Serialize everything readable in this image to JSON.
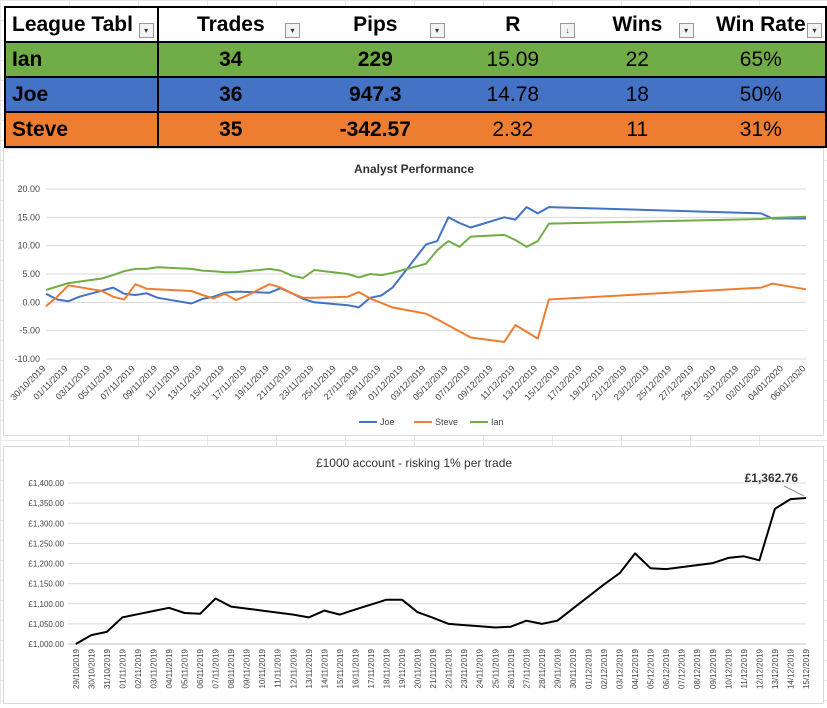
{
  "table": {
    "headers": [
      "League Tabl",
      "Trades",
      "Pips",
      "R",
      "Wins",
      "Win Rate"
    ],
    "rows": [
      [
        "Ian",
        "34",
        "229",
        "15.09",
        "22",
        "65%"
      ],
      [
        "Joe",
        "36",
        "947.3",
        "14.78",
        "18",
        "50%"
      ],
      [
        "Steve",
        "35",
        "-342.57",
        "2.32",
        "11",
        "31%"
      ]
    ],
    "row_colors": [
      "#70ad47",
      "#4472c4",
      "#ed7d31"
    ]
  },
  "chart_data": [
    {
      "type": "line",
      "title": "Analyst Performance",
      "ylim": [
        -10,
        20
      ],
      "yticks": [
        "-10.00",
        "-5.00",
        "0.00",
        "5.00",
        "10.00",
        "15.00",
        "20.00"
      ],
      "xlim": [
        "2019-10-30",
        "2020-01-06"
      ],
      "xticks": [
        "30/10/2019",
        "01/11/2019",
        "03/11/2019",
        "05/11/2019",
        "07/11/2019",
        "09/11/2019",
        "11/11/2019",
        "13/11/2019",
        "15/11/2019",
        "17/11/2019",
        "19/11/2019",
        "21/11/2019",
        "23/11/2019",
        "25/11/2019",
        "27/11/2019",
        "29/11/2019",
        "01/12/2019",
        "03/12/2019",
        "05/12/2019",
        "07/12/2019",
        "09/12/2019",
        "11/12/2019",
        "13/12/2019",
        "15/12/2019",
        "17/12/2019",
        "19/12/2019",
        "21/12/2019",
        "23/12/2019",
        "25/12/2019",
        "27/12/2019",
        "29/12/2019",
        "31/12/2019",
        "02/01/2020",
        "04/01/2020",
        "06/01/2020"
      ],
      "legend_position": "bottom",
      "series": [
        {
          "name": "Joe",
          "color": "#4472c4",
          "points": [
            [
              "2019-10-30",
              1.5
            ],
            [
              "2019-10-31",
              0.5
            ],
            [
              "2019-11-01",
              0.2
            ],
            [
              "2019-11-02",
              1.0
            ],
            [
              "2019-11-05",
              2.6
            ],
            [
              "2019-11-06",
              1.5
            ],
            [
              "2019-11-07",
              1.3
            ],
            [
              "2019-11-08",
              1.6
            ],
            [
              "2019-11-09",
              0.8
            ],
            [
              "2019-11-12",
              -0.2
            ],
            [
              "2019-11-13",
              0.6
            ],
            [
              "2019-11-14",
              1.0
            ],
            [
              "2019-11-15",
              1.7
            ],
            [
              "2019-11-16",
              1.9
            ],
            [
              "2019-11-19",
              1.7
            ],
            [
              "2019-11-20",
              2.5
            ],
            [
              "2019-11-21",
              1.6
            ],
            [
              "2019-11-22",
              0.6
            ],
            [
              "2019-11-23",
              0.0
            ],
            [
              "2019-11-26",
              -0.5
            ],
            [
              "2019-11-27",
              -0.9
            ],
            [
              "2019-11-28",
              0.8
            ],
            [
              "2019-11-29",
              1.2
            ],
            [
              "2019-11-30",
              2.6
            ],
            [
              "2019-12-03",
              10.2
            ],
            [
              "2019-12-04",
              10.8
            ],
            [
              "2019-12-05",
              15.0
            ],
            [
              "2019-12-06",
              14.0
            ],
            [
              "2019-12-07",
              13.2
            ],
            [
              "2019-12-10",
              15.0
            ],
            [
              "2019-12-11",
              14.6
            ],
            [
              "2019-12-12",
              16.8
            ],
            [
              "2019-12-13",
              15.7
            ],
            [
              "2019-12-14",
              16.8
            ],
            [
              "2020-01-02",
              15.7
            ],
            [
              "2020-01-03",
              14.8
            ],
            [
              "2020-01-06",
              14.8
            ]
          ]
        },
        {
          "name": "Steve",
          "color": "#ed7d31",
          "points": [
            [
              "2019-10-30",
              -0.7
            ],
            [
              "2019-10-31",
              1.0
            ],
            [
              "2019-11-01",
              3.0
            ],
            [
              "2019-11-04",
              2.0
            ],
            [
              "2019-11-05",
              1.0
            ],
            [
              "2019-11-06",
              0.5
            ],
            [
              "2019-11-07",
              3.2
            ],
            [
              "2019-11-08",
              2.4
            ],
            [
              "2019-11-12",
              2.0
            ],
            [
              "2019-11-13",
              1.3
            ],
            [
              "2019-11-14",
              0.7
            ],
            [
              "2019-11-15",
              1.5
            ],
            [
              "2019-11-16",
              0.4
            ],
            [
              "2019-11-17",
              1.2
            ],
            [
              "2019-11-19",
              3.2
            ],
            [
              "2019-11-20",
              2.6
            ],
            [
              "2019-11-21",
              1.6
            ],
            [
              "2019-11-22",
              0.8
            ],
            [
              "2019-11-23",
              0.8
            ],
            [
              "2019-11-26",
              1.0
            ],
            [
              "2019-11-27",
              1.8
            ],
            [
              "2019-11-28",
              0.7
            ],
            [
              "2019-11-30",
              -0.9
            ],
            [
              "2019-12-03",
              -2.0
            ],
            [
              "2019-12-04",
              -3.0
            ],
            [
              "2019-12-07",
              -6.2
            ],
            [
              "2019-12-10",
              -7.0
            ],
            [
              "2019-12-11",
              -4.0
            ],
            [
              "2019-12-13",
              -6.4
            ],
            [
              "2019-12-14",
              0.5
            ],
            [
              "2020-01-02",
              2.6
            ],
            [
              "2020-01-03",
              3.3
            ],
            [
              "2020-01-06",
              2.3
            ]
          ]
        },
        {
          "name": "Ian",
          "color": "#70ad47",
          "points": [
            [
              "2019-10-30",
              2.2
            ],
            [
              "2019-10-31",
              2.8
            ],
            [
              "2019-11-01",
              3.4
            ],
            [
              "2019-11-04",
              4.2
            ],
            [
              "2019-11-05",
              4.8
            ],
            [
              "2019-11-06",
              5.5
            ],
            [
              "2019-11-07",
              5.9
            ],
            [
              "2019-11-08",
              5.9
            ],
            [
              "2019-11-09",
              6.2
            ],
            [
              "2019-11-12",
              5.9
            ],
            [
              "2019-11-13",
              5.6
            ],
            [
              "2019-11-14",
              5.5
            ],
            [
              "2019-11-15",
              5.3
            ],
            [
              "2019-11-16",
              5.3
            ],
            [
              "2019-11-19",
              5.9
            ],
            [
              "2019-11-20",
              5.6
            ],
            [
              "2019-11-21",
              4.7
            ],
            [
              "2019-11-22",
              4.3
            ],
            [
              "2019-11-23",
              5.7
            ],
            [
              "2019-11-26",
              5.0
            ],
            [
              "2019-11-27",
              4.4
            ],
            [
              "2019-11-28",
              5.0
            ],
            [
              "2019-11-29",
              4.8
            ],
            [
              "2019-11-30",
              5.2
            ],
            [
              "2019-12-03",
              6.8
            ],
            [
              "2019-12-04",
              9.2
            ],
            [
              "2019-12-05",
              10.8
            ],
            [
              "2019-12-06",
              9.8
            ],
            [
              "2019-12-07",
              11.6
            ],
            [
              "2019-12-10",
              11.9
            ],
            [
              "2019-12-11",
              11.0
            ],
            [
              "2019-12-12",
              9.8
            ],
            [
              "2019-12-13",
              10.8
            ],
            [
              "2019-12-14",
              13.9
            ],
            [
              "2020-01-02",
              14.7
            ],
            [
              "2020-01-03",
              14.9
            ],
            [
              "2020-01-06",
              15.1
            ]
          ]
        }
      ]
    },
    {
      "type": "line",
      "title": "£1000 account - risking 1% per trade",
      "ylim": [
        1000,
        1400
      ],
      "yticks": [
        "£1,000.00",
        "£1,050.00",
        "£1,100.00",
        "£1,150.00",
        "£1,200.00",
        "£1,250.00",
        "£1,300.00",
        "£1,350.00",
        "£1,400.00"
      ],
      "categories": [
        "29/10/2019",
        "30/10/2019",
        "31/10/2019",
        "01/11/2019",
        "02/11/2019",
        "03/11/2019",
        "04/11/2019",
        "05/11/2019",
        "06/11/2019",
        "07/11/2019",
        "08/11/2019",
        "09/11/2019",
        "10/11/2019",
        "11/11/2019",
        "12/11/2019",
        "13/11/2019",
        "14/11/2019",
        "15/11/2019",
        "16/11/2019",
        "17/11/2019",
        "18/11/2019",
        "19/11/2019",
        "20/11/2019",
        "21/11/2019",
        "22/11/2019",
        "23/11/2019",
        "24/11/2019",
        "25/11/2019",
        "26/11/2019",
        "27/11/2019",
        "28/11/2019",
        "29/11/2019",
        "30/11/2019",
        "01/12/2019",
        "02/12/2019",
        "03/12/2019",
        "04/12/2019",
        "05/12/2019",
        "06/12/2019",
        "07/12/2019",
        "08/12/2019",
        "09/12/2019",
        "10/12/2019",
        "11/12/2019",
        "12/12/2019",
        "13/12/2019",
        "14/12/2019",
        "15/12/2019"
      ],
      "series": [
        {
          "color": "#000000",
          "values": [
            1000,
            1022,
            1030,
            1066,
            1074,
            1082,
            1090,
            1077,
            1075,
            1113,
            1093,
            1088,
            1083,
            1078,
            1073,
            1066,
            1083,
            1073,
            1086,
            1098,
            1110,
            1110,
            1079,
            1065,
            1050,
            1047,
            1044,
            1041,
            1043,
            1058,
            1050,
            1058,
            1088,
            1118,
            1148,
            1176,
            1225,
            1188,
            1186,
            1191,
            1196,
            1201,
            1214,
            1218,
            1208,
            1336,
            1360,
            1362.76
          ]
        }
      ],
      "data_label": "£1,362.76"
    }
  ]
}
